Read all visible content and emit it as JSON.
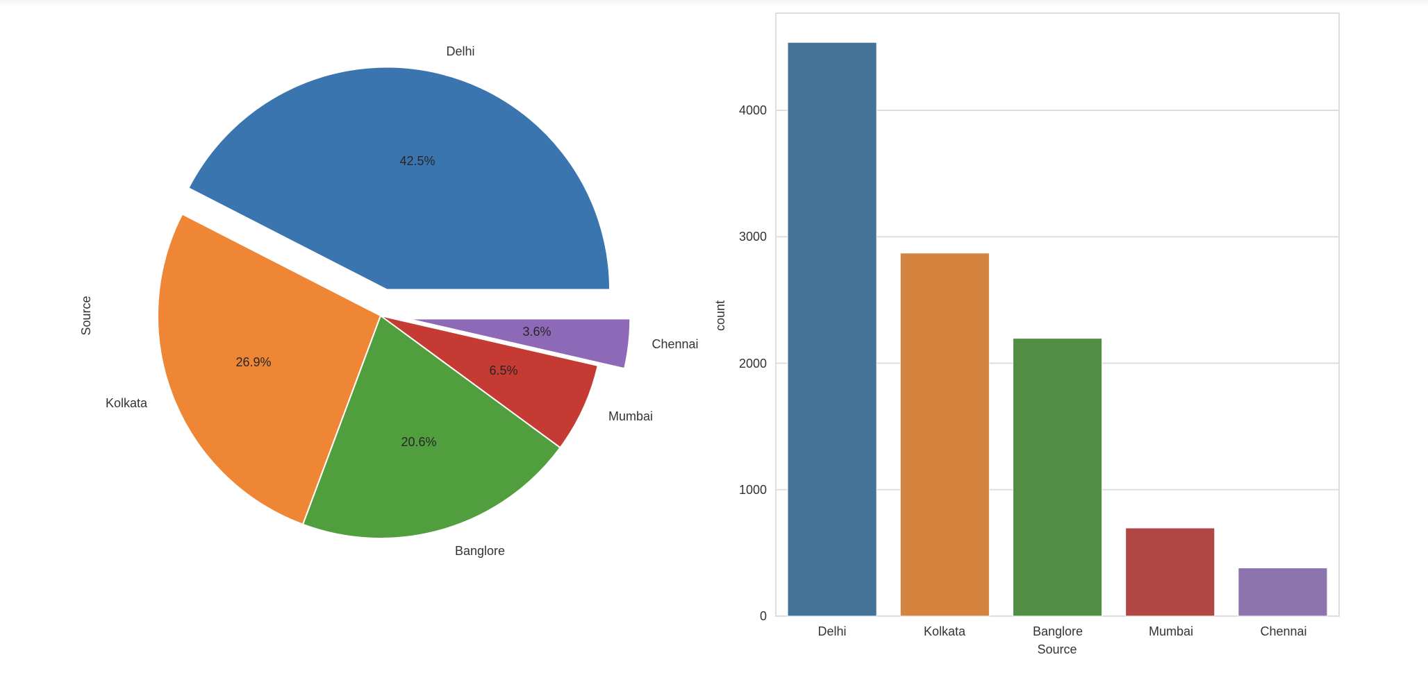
{
  "chart_data": [
    {
      "type": "pie",
      "title": "",
      "ylabel": "Source",
      "categories": [
        "Delhi",
        "Kolkata",
        "Banglore",
        "Mumbai",
        "Chennai"
      ],
      "values": [
        42.5,
        26.9,
        20.6,
        6.5,
        3.6
      ],
      "value_labels": [
        "42.5%",
        "26.9%",
        "20.6%",
        "6.5%",
        "3.6%"
      ],
      "explode": [
        0.12,
        0,
        0,
        0,
        0.12
      ],
      "startangle": 0,
      "colors": [
        "#3a75af",
        "#ef8636",
        "#519e3e",
        "#c53a32",
        "#8d69b8"
      ]
    },
    {
      "type": "bar",
      "title": "",
      "xlabel": "Source",
      "ylabel": "count",
      "categories": [
        "Delhi",
        "Kolkata",
        "Banglore",
        "Mumbai",
        "Chennai"
      ],
      "values": [
        4537,
        2871,
        2197,
        697,
        381
      ],
      "ylim": [
        0,
        4750
      ],
      "yticks": [
        0,
        1000,
        2000,
        3000,
        4000
      ],
      "grid": true,
      "colors": [
        "#447399",
        "#d4843f",
        "#528f44",
        "#b04744",
        "#8d74ae"
      ]
    }
  ],
  "pie": {
    "ylabel": "Source",
    "slices": [
      {
        "label": "Delhi",
        "pct": "42.5%"
      },
      {
        "label": "Kolkata",
        "pct": "26.9%"
      },
      {
        "label": "Banglore",
        "pct": "20.6%"
      },
      {
        "label": "Mumbai",
        "pct": "6.5%"
      },
      {
        "label": "Chennai",
        "pct": "3.6%"
      }
    ]
  },
  "bar": {
    "xlabel": "Source",
    "ylabel": "count",
    "yticks": [
      "0",
      "1000",
      "2000",
      "3000",
      "4000"
    ],
    "xticks": [
      "Delhi",
      "Kolkata",
      "Banglore",
      "Mumbai",
      "Chennai"
    ]
  }
}
